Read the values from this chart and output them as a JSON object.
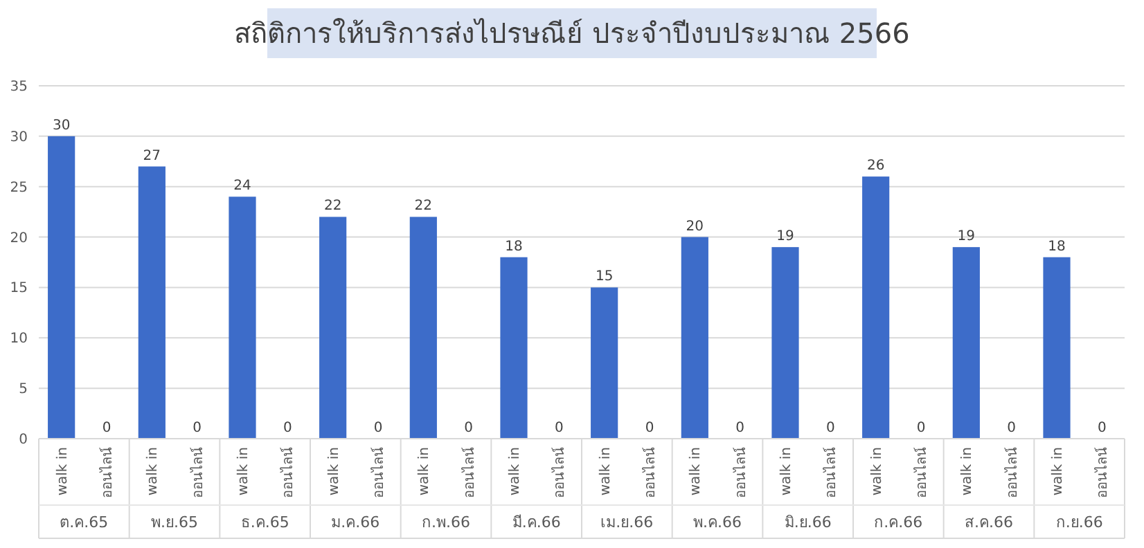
{
  "chart_data": {
    "type": "bar",
    "title": "สถิติการให้บริการส่งไปรษณีย์ ประจำปีงบประมาณ 2566",
    "categories": [
      "walk in",
      "ออนไลน์",
      "walk in",
      "ออนไลน์",
      "walk in",
      "ออนไลน์",
      "walk in",
      "ออนไลน์",
      "walk in",
      "ออนไลน์",
      "walk in",
      "ออนไลน์",
      "walk in",
      "ออนไลน์",
      "walk in",
      "ออนไลน์",
      "walk in",
      "ออนไลน์",
      "walk in",
      "ออนไลน์",
      "walk in",
      "ออนไลน์",
      "walk in",
      "ออนไลน์"
    ],
    "values": [
      30,
      0,
      27,
      0,
      24,
      0,
      22,
      0,
      22,
      0,
      18,
      0,
      15,
      0,
      20,
      0,
      19,
      0,
      26,
      0,
      19,
      0,
      18,
      0
    ],
    "color": "#3d6cc9",
    "annotations": [
      "ต.ค.65",
      "พ.ย.65",
      "ธ.ค.65",
      "ม.ค.66",
      "ก.พ.66",
      "มี.ค.66",
      "เม.ย.66",
      "พ.ค.66",
      "มิ.ย.66",
      "ก.ค.66",
      "ส.ค.66",
      "ก.ย.66"
    ],
    "ylim": [
      0,
      35
    ],
    "yticks": [
      0,
      5,
      10,
      15,
      20,
      25,
      30,
      35
    ],
    "grid": true,
    "data_labels": true
  }
}
